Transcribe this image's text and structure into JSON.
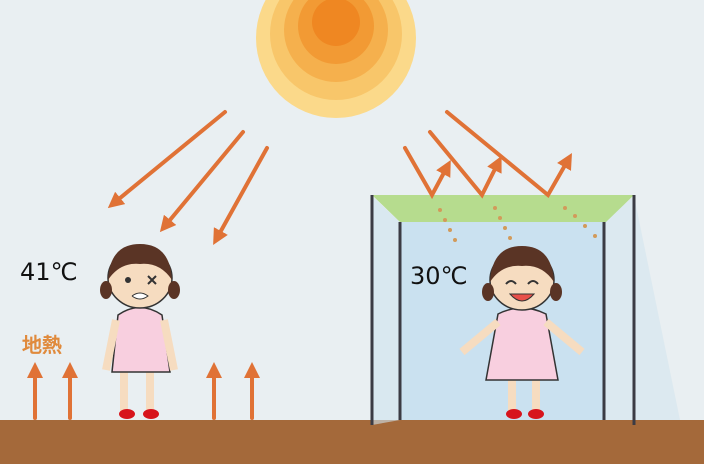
{
  "labels": {
    "left_temp": "41℃",
    "right_temp": "30℃",
    "ground_heat": "地熱"
  }
}
